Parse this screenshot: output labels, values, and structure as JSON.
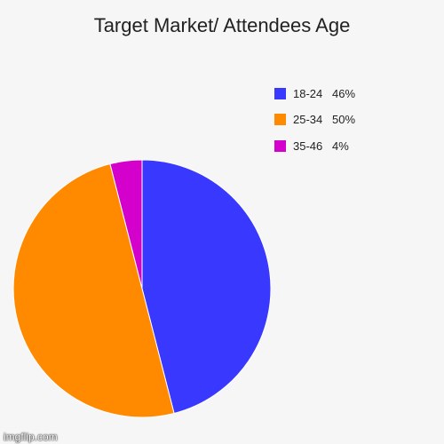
{
  "chart_data": {
    "type": "pie",
    "title": "Target Market/ Attendees Age",
    "slices": [
      {
        "label": "18-24",
        "value": 46,
        "pct_label": "46%",
        "color": "#3838ff"
      },
      {
        "label": "25-34",
        "value": 50,
        "pct_label": "50%",
        "color": "#ff8a00"
      },
      {
        "label": "35-46",
        "value": 4,
        "pct_label": "4%",
        "color": "#d400cc"
      }
    ],
    "legend_position": "right"
  },
  "watermark": "imgflip.com"
}
